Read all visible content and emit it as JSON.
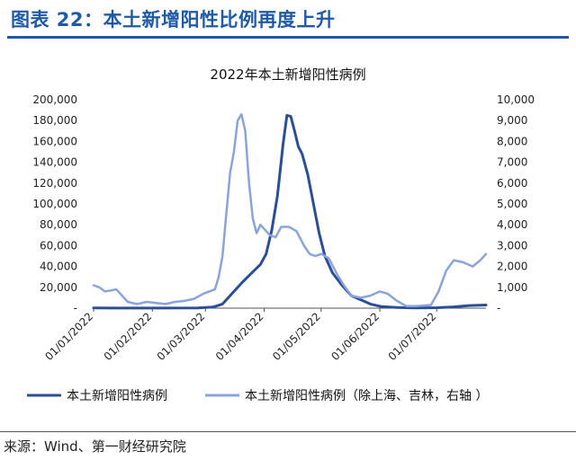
{
  "figure_title": "图表 22：本土新增阳性比例再度上升",
  "source": "来源：Wind、第一财经研究院",
  "colors": {
    "accent": "#1f5aa8",
    "series_left": "#2a4f96",
    "series_right": "#8aa4db"
  },
  "chart_data": {
    "type": "line",
    "title": "2022年本土新增阳性病例",
    "legend_position": "bottom",
    "grid": false,
    "x_ticks": [
      "01/01/2022",
      "01/02/2022",
      "01/03/2022",
      "01/04/2022",
      "01/05/2022",
      "01/06/2022",
      "01/07/2022"
    ],
    "x_range": [
      "2022-01-01",
      "2022-07-27"
    ],
    "y_left": {
      "ticks": [
        "-",
        "20,000",
        "40,000",
        "60,000",
        "80,000",
        "100,000",
        "120,000",
        "140,000",
        "160,000",
        "180,000",
        "200,000"
      ],
      "range": [
        0,
        200000
      ]
    },
    "y_right": {
      "ticks": [
        "-",
        "1,000",
        "2,000",
        "3,000",
        "4,000",
        "5,000",
        "6,000",
        "7,000",
        "8,000",
        "9,000",
        "10,000"
      ],
      "range": [
        0,
        10000
      ]
    },
    "series": [
      {
        "name": "本土新增阳性病例",
        "axis": "left",
        "color": "#2a4f96",
        "points": [
          [
            "2022-01-01",
            200
          ],
          [
            "2022-02-01",
            100
          ],
          [
            "2022-02-25",
            300
          ],
          [
            "2022-03-05",
            1000
          ],
          [
            "2022-03-10",
            4000
          ],
          [
            "2022-03-15",
            14000
          ],
          [
            "2022-03-20",
            24000
          ],
          [
            "2022-03-25",
            33000
          ],
          [
            "2022-03-30",
            42000
          ],
          [
            "2022-04-02",
            52000
          ],
          [
            "2022-04-05",
            75000
          ],
          [
            "2022-04-08",
            108000
          ],
          [
            "2022-04-11",
            158000
          ],
          [
            "2022-04-13",
            185000
          ],
          [
            "2022-04-15",
            184000
          ],
          [
            "2022-04-17",
            170000
          ],
          [
            "2022-04-19",
            155000
          ],
          [
            "2022-04-21",
            148000
          ],
          [
            "2022-04-24",
            128000
          ],
          [
            "2022-04-27",
            100000
          ],
          [
            "2022-04-30",
            72000
          ],
          [
            "2022-05-03",
            50000
          ],
          [
            "2022-05-07",
            34000
          ],
          [
            "2022-05-12",
            22000
          ],
          [
            "2022-05-17",
            12000
          ],
          [
            "2022-05-22",
            8000
          ],
          [
            "2022-05-27",
            4000
          ],
          [
            "2022-06-02",
            1500
          ],
          [
            "2022-06-10",
            600
          ],
          [
            "2022-06-20",
            300
          ],
          [
            "2022-07-01",
            400
          ],
          [
            "2022-07-10",
            1200
          ],
          [
            "2022-07-18",
            2500
          ],
          [
            "2022-07-27",
            3000
          ]
        ]
      },
      {
        "name": "本土新增阳性病例（除上海、吉林，右轴 ）",
        "axis": "right",
        "color": "#8aa4db",
        "points": [
          [
            "2022-01-01",
            1100
          ],
          [
            "2022-01-04",
            1000
          ],
          [
            "2022-01-07",
            800
          ],
          [
            "2022-01-10",
            850
          ],
          [
            "2022-01-13",
            900
          ],
          [
            "2022-01-16",
            600
          ],
          [
            "2022-01-19",
            300
          ],
          [
            "2022-01-24",
            200
          ],
          [
            "2022-01-29",
            300
          ],
          [
            "2022-02-03",
            250
          ],
          [
            "2022-02-08",
            200
          ],
          [
            "2022-02-13",
            300
          ],
          [
            "2022-02-18",
            350
          ],
          [
            "2022-02-23",
            450
          ],
          [
            "2022-02-28",
            700
          ],
          [
            "2022-03-03",
            800
          ],
          [
            "2022-03-06",
            900
          ],
          [
            "2022-03-08",
            1500
          ],
          [
            "2022-03-10",
            2500
          ],
          [
            "2022-03-12",
            4500
          ],
          [
            "2022-03-14",
            6500
          ],
          [
            "2022-03-16",
            7500
          ],
          [
            "2022-03-18",
            9000
          ],
          [
            "2022-03-20",
            9300
          ],
          [
            "2022-03-22",
            8500
          ],
          [
            "2022-03-24",
            6000
          ],
          [
            "2022-03-26",
            4300
          ],
          [
            "2022-03-28",
            3600
          ],
          [
            "2022-03-30",
            4000
          ],
          [
            "2022-04-01",
            3800
          ],
          [
            "2022-04-04",
            3500
          ],
          [
            "2022-04-07",
            3400
          ],
          [
            "2022-04-10",
            3900
          ],
          [
            "2022-04-14",
            3900
          ],
          [
            "2022-04-18",
            3700
          ],
          [
            "2022-04-22",
            3000
          ],
          [
            "2022-04-25",
            2600
          ],
          [
            "2022-04-28",
            2500
          ],
          [
            "2022-05-01",
            2600
          ],
          [
            "2022-05-05",
            2400
          ],
          [
            "2022-05-09",
            1700
          ],
          [
            "2022-05-13",
            1100
          ],
          [
            "2022-05-17",
            600
          ],
          [
            "2022-05-22",
            500
          ],
          [
            "2022-05-27",
            600
          ],
          [
            "2022-06-01",
            800
          ],
          [
            "2022-06-05",
            700
          ],
          [
            "2022-06-10",
            350
          ],
          [
            "2022-06-15",
            100
          ],
          [
            "2022-06-20",
            100
          ],
          [
            "2022-06-28",
            150
          ],
          [
            "2022-07-02",
            800
          ],
          [
            "2022-07-06",
            1800
          ],
          [
            "2022-07-10",
            2300
          ],
          [
            "2022-07-15",
            2200
          ],
          [
            "2022-07-20",
            2000
          ],
          [
            "2022-07-24",
            2300
          ],
          [
            "2022-07-27",
            2600
          ]
        ]
      }
    ]
  }
}
